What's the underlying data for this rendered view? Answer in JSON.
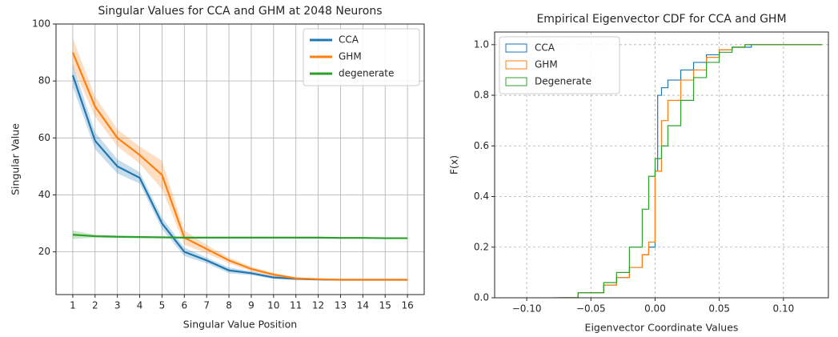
{
  "chart_data": [
    {
      "type": "line",
      "title": "Singular Values for CCA and GHM at 2048 Neurons",
      "xlabel": "Singular Value Position",
      "ylabel": "Singular Value",
      "x": [
        1,
        2,
        3,
        4,
        5,
        6,
        7,
        8,
        9,
        10,
        11,
        12,
        13,
        14,
        15,
        16
      ],
      "xlim": [
        0.25,
        16.75
      ],
      "xticks": [
        1,
        2,
        3,
        4,
        5,
        6,
        7,
        8,
        9,
        10,
        11,
        12,
        13,
        14,
        15,
        16
      ],
      "ylim": [
        5,
        100
      ],
      "yticks": [
        20,
        40,
        60,
        80,
        100
      ],
      "grid": true,
      "grid_style": "solid",
      "legend": "upper right",
      "series": [
        {
          "name": "CCA",
          "color": "#1f77b4",
          "values": [
            82,
            59,
            50,
            46,
            30,
            20,
            17,
            13.5,
            12.5,
            11,
            10.5,
            10.3,
            10.2,
            10.2,
            10.2,
            10.2
          ],
          "error": [
            4,
            3,
            2.5,
            2,
            2,
            1.5,
            1,
            1,
            0.7,
            0.5,
            0.3,
            0.2,
            0.2,
            0.2,
            0.2,
            0.2
          ]
        },
        {
          "name": "GHM",
          "color": "#ff7f0e",
          "values": [
            90,
            71,
            60,
            54,
            47,
            25,
            21,
            17,
            14,
            12,
            10.7,
            10.4,
            10.2,
            10.2,
            10.2,
            10.2
          ],
          "error": [
            5,
            3.5,
            3,
            3,
            5,
            2.5,
            1.5,
            1,
            0.8,
            0.6,
            0.4,
            0.3,
            0.2,
            0.2,
            0.2,
            0.2
          ]
        },
        {
          "name": "degenerate",
          "color": "#2ca02c",
          "values": [
            26,
            25.5,
            25.3,
            25.2,
            25.1,
            25,
            25,
            25,
            25,
            25,
            25,
            25,
            24.9,
            24.9,
            24.8,
            24.8
          ],
          "error": [
            1.5,
            0.5,
            0.4,
            0.3,
            0.3,
            0.3,
            0.3,
            0.3,
            0.3,
            0.3,
            0.3,
            0.3,
            0.3,
            0.3,
            0.3,
            0.3
          ]
        }
      ]
    },
    {
      "type": "step",
      "title": "Empirical Eigenvector CDF for CCA and GHM",
      "xlabel": "Eigenvector Coordinate Values",
      "ylabel": "F(x)",
      "xlim": [
        -0.125,
        0.135
      ],
      "xticks": [
        {
          "value": -0.1,
          "label": "−0.10"
        },
        {
          "value": -0.05,
          "label": "−0.05"
        },
        {
          "value": 0,
          "label": "0.00"
        },
        {
          "value": 0.05,
          "label": "0.05"
        },
        {
          "value": 0.1,
          "label": "0.10"
        }
      ],
      "ylim": [
        0,
        1.05
      ],
      "yticks": [
        {
          "value": 0,
          "label": "0.0"
        },
        0.2,
        0.4,
        0.6,
        0.8,
        {
          "value": 1,
          "label": "1.0"
        }
      ],
      "grid": true,
      "grid_style": "dashed",
      "legend": "upper left",
      "series": [
        {
          "name": "CCA",
          "color": "#1f77b4",
          "x": [
            -0.08,
            -0.06,
            -0.04,
            -0.03,
            -0.02,
            -0.01,
            -0.005,
            0,
            0.002,
            0.005,
            0.01,
            0.02,
            0.03,
            0.04,
            0.05,
            0.06,
            0.075,
            0.13
          ],
          "values": [
            0,
            0.02,
            0.05,
            0.08,
            0.12,
            0.17,
            0.2,
            0.5,
            0.8,
            0.83,
            0.86,
            0.9,
            0.93,
            0.96,
            0.98,
            0.99,
            1,
            1
          ]
        },
        {
          "name": "GHM",
          "color": "#ff7f0e",
          "x": [
            -0.075,
            -0.06,
            -0.04,
            -0.03,
            -0.02,
            -0.01,
            -0.005,
            0,
            0.005,
            0.01,
            0.02,
            0.03,
            0.04,
            0.05,
            0.06,
            0.07,
            0.13
          ],
          "values": [
            0,
            0.02,
            0.05,
            0.08,
            0.12,
            0.17,
            0.22,
            0.5,
            0.7,
            0.78,
            0.86,
            0.9,
            0.95,
            0.98,
            0.99,
            1,
            1
          ]
        },
        {
          "name": "Degenerate",
          "color": "#2ca02c",
          "x": [
            -0.075,
            -0.06,
            -0.04,
            -0.03,
            -0.02,
            -0.01,
            -0.005,
            0,
            0.005,
            0.01,
            0.02,
            0.03,
            0.04,
            0.05,
            0.06,
            0.07,
            0.13
          ],
          "values": [
            0,
            0.02,
            0.06,
            0.1,
            0.2,
            0.35,
            0.48,
            0.55,
            0.6,
            0.68,
            0.78,
            0.87,
            0.93,
            0.97,
            0.99,
            1,
            1
          ]
        }
      ]
    }
  ]
}
